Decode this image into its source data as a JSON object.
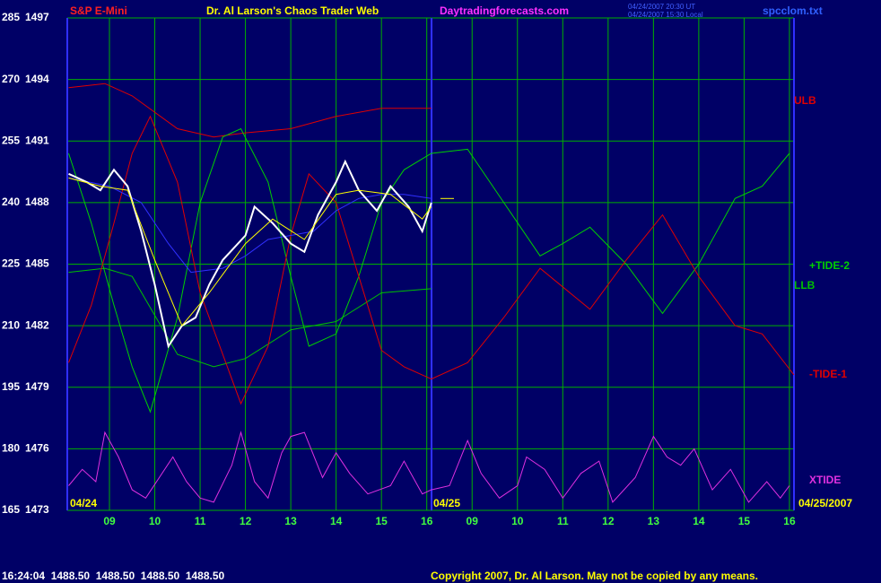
{
  "chart_data": {
    "type": "line",
    "title": "Dr. Al Larson's Chaos Trader Web",
    "instrument": "S&P E-Mini",
    "site": "Daytradingforecasts.com",
    "timestamp_ut": "04/24/2007 20:30 UT",
    "timestamp_local": "04/24/2007 15:30 Local",
    "file": "spcclom.txt",
    "date_labels": [
      "04/24",
      "04/25",
      "04/25/2007"
    ],
    "status": "16:24:04  1488.50  1488.50  1488.50  1488.50",
    "copyright": "Copyright 2007, Dr. Al Larson. May not be copied by any means.",
    "grid": true,
    "xlim": [
      8.07,
      24.1
    ],
    "xticks": [
      {
        "value": 9,
        "label": "09"
      },
      10,
      11,
      12,
      13,
      14,
      15,
      16,
      {
        "value": 17,
        "label": "09"
      },
      {
        "value": 18,
        "label": "10"
      },
      {
        "value": 19,
        "label": "11"
      },
      {
        "value": 20,
        "label": "12"
      },
      {
        "value": 21,
        "label": "13"
      },
      {
        "value": 22,
        "label": "14"
      },
      {
        "value": 23,
        "label": "15"
      },
      {
        "value": 24,
        "label": "16"
      }
    ],
    "ylim": [
      165,
      285
    ],
    "yticks": [
      165,
      180,
      195,
      210,
      225,
      240,
      255,
      270,
      285
    ],
    "y2lim": [
      1473,
      1497
    ],
    "y2ticks": [
      1473,
      1476,
      1479,
      1482,
      1485,
      1488,
      1491,
      1494,
      1497
    ],
    "series": [
      {
        "name": "ULB",
        "color": "#e00000",
        "x": [
          8.1,
          8.9,
          9.5,
          10.5,
          11.3,
          12,
          13,
          14,
          15,
          16.1
        ],
        "values": [
          268,
          269,
          266,
          258,
          256,
          257,
          258,
          261,
          263,
          263
        ]
      },
      {
        "name": "LLB",
        "color": "#00c000",
        "x": [
          8.1,
          8.9,
          9.5,
          10.5,
          11.3,
          12,
          13,
          14,
          15,
          16.1
        ],
        "values": [
          223,
          224,
          222,
          203,
          200,
          202,
          209,
          211,
          218,
          219
        ]
      },
      {
        "name": "+TIDE-2",
        "color": "#00d000",
        "x": [
          8.1,
          8.6,
          9.1,
          9.5,
          9.9,
          10.5,
          11,
          11.5,
          11.9,
          12.5,
          13,
          13.4,
          14,
          14.5,
          15,
          15.5,
          16.1,
          16.9,
          17.7,
          18.5,
          19,
          19.6,
          20.4,
          21.2,
          22,
          22.8,
          23.4,
          24
        ],
        "values": [
          252,
          235,
          215,
          200,
          189,
          212,
          240,
          256,
          258,
          245,
          222,
          205,
          208,
          222,
          240,
          248,
          252,
          253,
          240,
          227,
          230,
          234,
          225,
          213,
          225,
          241,
          244,
          252
        ]
      },
      {
        "name": "-TIDE-1",
        "color": "#e00000",
        "x": [
          8.1,
          8.6,
          9.1,
          9.5,
          9.9,
          10.5,
          11,
          11.9,
          12.5,
          13,
          13.4,
          14,
          14.5,
          15,
          15.5,
          16.1,
          16.9,
          17.7,
          18.5,
          19.6,
          20.4,
          21.2,
          22,
          22.8,
          23.4,
          24.1
        ],
        "values": [
          201,
          215,
          235,
          252,
          261,
          245,
          218,
          191,
          205,
          232,
          247,
          240,
          222,
          204,
          200,
          197,
          201,
          212,
          224,
          214,
          226,
          237,
          222,
          210,
          208,
          198
        ]
      },
      {
        "color": "#3030ff",
        "x": [
          8.1,
          9,
          9.7,
          10.3,
          10.8,
          11.5,
          12,
          12.5,
          13,
          13.5,
          14,
          14.5,
          15,
          15.5,
          16.1
        ],
        "values": [
          246,
          244,
          240,
          230,
          223,
          224,
          227,
          231,
          232,
          233,
          238,
          241,
          242,
          242,
          241
        ]
      },
      {
        "color": "#ffffff",
        "x": [
          8.1,
          8.5,
          8.8,
          9.1,
          9.4,
          9.7,
          10,
          10.3,
          10.6,
          10.9,
          11.2,
          11.5,
          12,
          12.2,
          12.6,
          13,
          13.3,
          13.6,
          14,
          14.2,
          14.5,
          14.9,
          15.2,
          15.6,
          15.9,
          16.1
        ],
        "values": [
          247,
          245,
          243,
          248,
          244,
          233,
          220,
          205,
          210,
          212,
          220,
          226,
          232,
          239,
          235,
          230,
          228,
          237,
          245,
          250,
          243,
          238,
          244,
          239,
          233,
          240
        ]
      },
      {
        "color": "#ffff00",
        "x": [
          8.1,
          8.8,
          9.4,
          10,
          10.6,
          11.2,
          12,
          12.6,
          13.3,
          14,
          14.5,
          15.2,
          15.9,
          16.1
        ],
        "values": [
          246,
          244,
          243,
          226,
          210,
          218,
          230,
          236,
          231,
          242,
          243,
          242,
          236,
          239
        ]
      },
      {
        "color": "#ffff00",
        "x": [
          16.3,
          16.6
        ],
        "values": [
          241,
          241
        ]
      },
      {
        "name": "XTIDE",
        "color": "#e030e0",
        "x": [
          8.1,
          8.4,
          8.7,
          8.9,
          9.2,
          9.5,
          9.8,
          10.1,
          10.4,
          10.7,
          11,
          11.3,
          11.7,
          11.9,
          12.2,
          12.5,
          12.8,
          13,
          13.3,
          13.7,
          14,
          14.3,
          14.7,
          15.2,
          15.5,
          15.9,
          16.1,
          16.5,
          16.9,
          17.2,
          17.6,
          18,
          18.2,
          18.6,
          19,
          19.4,
          19.8,
          20.1,
          20.6,
          21,
          21.3,
          21.6,
          21.9,
          22.3,
          22.7,
          23.1,
          23.5,
          23.8,
          24
        ],
        "values": [
          171,
          175,
          172,
          184,
          178,
          170,
          168,
          173,
          178,
          172,
          168,
          167,
          176,
          184,
          172,
          168,
          179,
          183,
          184,
          173,
          179,
          174,
          169,
          171,
          177,
          169,
          170,
          171,
          182,
          174,
          168,
          171,
          178,
          175,
          168,
          174,
          177,
          167,
          173,
          183,
          178,
          176,
          180,
          170,
          175,
          167,
          172,
          168,
          171
        ]
      }
    ]
  }
}
